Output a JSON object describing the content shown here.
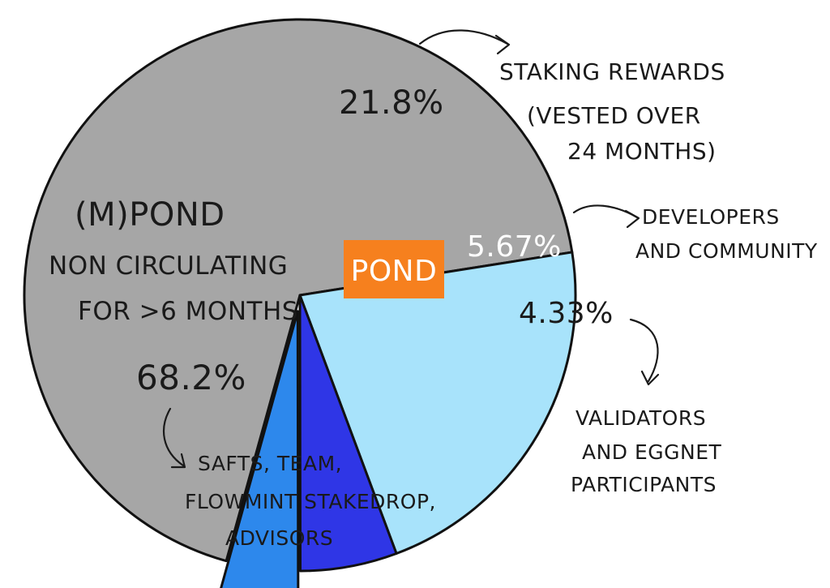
{
  "chart_data": {
    "type": "pie",
    "center_label": "POND",
    "slices": [
      {
        "label": "(M)POND NON CIRCULATING FOR >6 MONTHS",
        "value": 68.2,
        "value_label": "68.2%",
        "description": "SAFTS, TEAM, FLOWMINT STAKEDROP, ADVISORS",
        "color": "#a6a6a6",
        "exploded": false
      },
      {
        "label": "STAKING REWARDS",
        "value": 21.8,
        "value_label": "21.8%",
        "description": "(VESTED OVER 24 MONTHS)",
        "color": "#a8e3fb",
        "exploded": false
      },
      {
        "label": "DEVELOPERS AND COMMUNITY",
        "value": 5.67,
        "value_label": "5.67%",
        "color": "#2f36e6",
        "exploded": false
      },
      {
        "label": "VALIDATORS AND EGGNET PARTICIPANTS",
        "value": 4.33,
        "value_label": "4.33%",
        "color": "#2d88ec",
        "exploded": true
      }
    ],
    "colors": {
      "badge": "#f6801e",
      "outline": "#111111"
    }
  },
  "labels": {
    "mpond_title": "(M)POND",
    "mpond_line1": "NON CIRCULATING",
    "mpond_line2": "FOR >6 MONTHS",
    "mpond_pct": "68.2%",
    "mpond_desc1": "SAFTS, TEAM,",
    "mpond_desc2": "FLOWMINT STAKEDROP,",
    "mpond_desc3": "ADVISORS",
    "staking_pct": "21.8%",
    "staking_line1": "STAKING REWARDS",
    "staking_line2": "(VESTED OVER",
    "staking_line3": "24 MONTHS)",
    "dev_pct": "5.67%",
    "dev_line1": "DEVELOPERS",
    "dev_line2": "AND COMMUNITY",
    "val_pct": "4.33%",
    "val_line1": "VALIDATORS",
    "val_line2": "AND EGGNET",
    "val_line3": "PARTICIPANTS",
    "badge": "POND"
  }
}
